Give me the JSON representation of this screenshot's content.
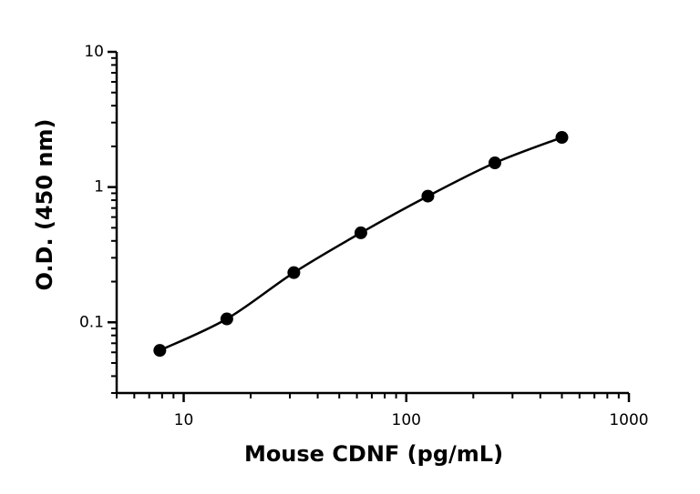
{
  "chart_data": {
    "type": "scatter",
    "x_label": "Mouse CDNF (pg/mL)",
    "y_label": "O.D. (450 nm)",
    "x": [
      7.8125,
      15.625,
      31.25,
      62.5,
      125,
      250,
      500
    ],
    "values": [
      0.062,
      0.106,
      0.233,
      0.459,
      0.857,
      1.51,
      2.33
    ],
    "color": "#000000",
    "fit_curve": true,
    "x_log": true,
    "y_log": true,
    "xlim": [
      5,
      1000
    ],
    "xticks": [
      10,
      100,
      1000
    ],
    "xminorticks": [
      5,
      6,
      7,
      8,
      9,
      20,
      30,
      40,
      50,
      60,
      70,
      80,
      90,
      200,
      300,
      400,
      500,
      600,
      700,
      800,
      900
    ],
    "ylim": [
      0.03,
      10
    ],
    "yticks": [
      0.1,
      1,
      10
    ],
    "yminorticks": [
      0.03,
      0.04,
      0.05,
      0.06,
      0.07,
      0.08,
      0.09,
      0.2,
      0.3,
      0.4,
      0.5,
      0.6,
      0.7,
      0.8,
      0.9,
      2,
      3,
      4,
      5,
      6,
      7,
      8,
      9
    ]
  }
}
